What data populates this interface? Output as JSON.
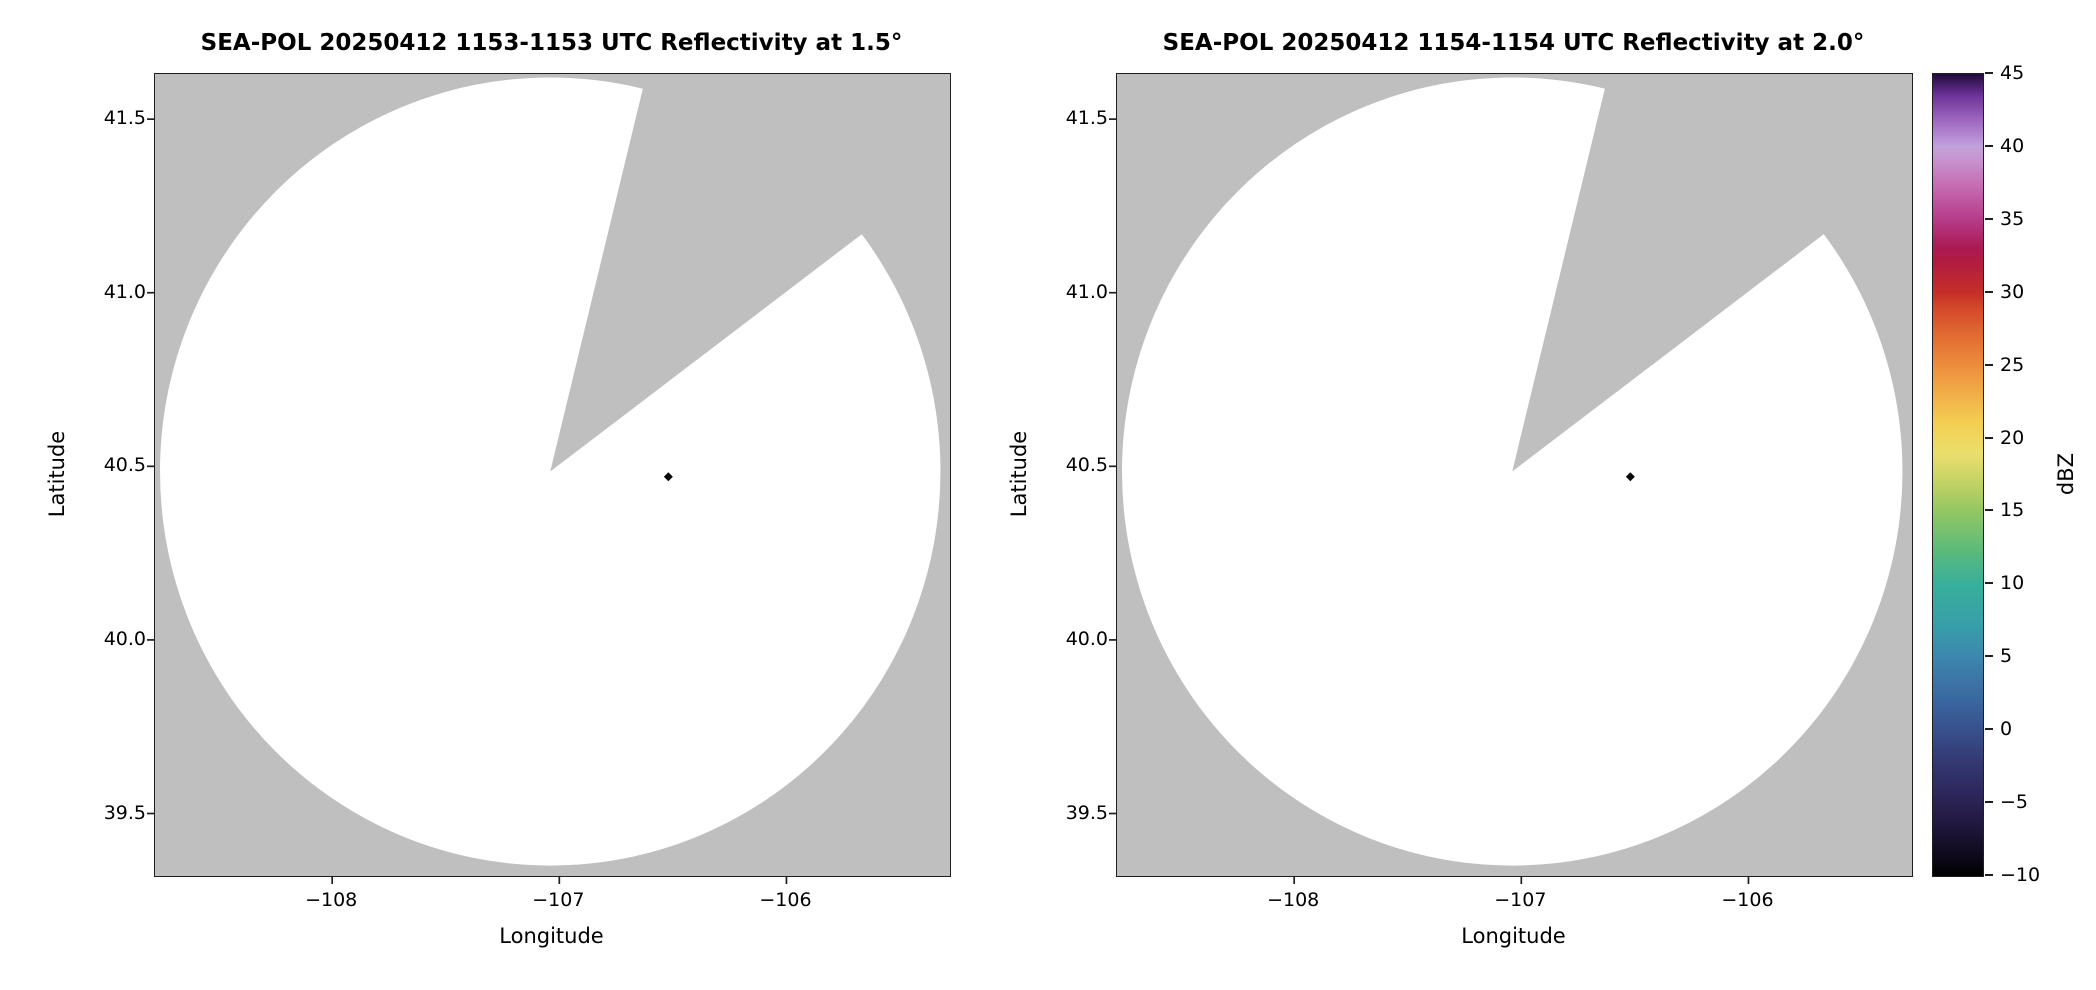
{
  "colors": {
    "figure_background": "#ffffff",
    "no_data_gray": "#bfbfbf",
    "scanned_white": "#ffffff",
    "axis_black": "#1f1f1f"
  },
  "chart_data": [
    {
      "type": "radar_ppi_pcolormesh",
      "title": "SEA-POL 20250412 1153-1153 UTC Reflectivity at 1.5°",
      "xlabel": "Longitude",
      "ylabel": "Latitude",
      "xlim": [
        -108.78,
        -105.28
      ],
      "ylim": [
        39.32,
        41.63
      ],
      "grid": false,
      "xticks": [
        {
          "v": -108,
          "label": "−108"
        },
        {
          "v": -107,
          "label": "−107"
        },
        {
          "v": -106,
          "label": "−106"
        }
      ],
      "yticks": [
        {
          "v": 41.5,
          "label": "41.5"
        },
        {
          "v": 41.0,
          "label": "41.0"
        },
        {
          "v": 40.5,
          "label": "40.5"
        },
        {
          "v": 40.0,
          "label": "40.0"
        },
        {
          "v": 39.5,
          "label": "39.5"
        }
      ],
      "radar": {
        "center_lon": -107.04,
        "center_lat": 40.485,
        "radius_lon_deg": 1.718,
        "radius_lat_deg": 1.135
      },
      "missing_sector": {
        "azimuth_start_deg": 13.6,
        "azimuth_end_deg": 52.7
      },
      "echo": {
        "lon": -106.52,
        "lat": 40.47,
        "color": "#0a0a0a"
      },
      "colors": {
        "scanned": "#ffffff",
        "no_data": "#bfbfbf"
      }
    },
    {
      "type": "radar_ppi_pcolormesh",
      "title": "SEA-POL 20250412 1154-1154 UTC Reflectivity at 2.0°",
      "xlabel": "Longitude",
      "ylabel": "Latitude",
      "xlim": [
        -108.78,
        -105.28
      ],
      "ylim": [
        39.32,
        41.63
      ],
      "grid": false,
      "xticks": [
        {
          "v": -108,
          "label": "−108"
        },
        {
          "v": -107,
          "label": "−107"
        },
        {
          "v": -106,
          "label": "−106"
        }
      ],
      "yticks": [
        {
          "v": 41.5,
          "label": "41.5"
        },
        {
          "v": 41.0,
          "label": "41.0"
        },
        {
          "v": 40.5,
          "label": "40.5"
        },
        {
          "v": 40.0,
          "label": "40.0"
        },
        {
          "v": 39.5,
          "label": "39.5"
        }
      ],
      "radar": {
        "center_lon": -107.04,
        "center_lat": 40.485,
        "radius_lon_deg": 1.718,
        "radius_lat_deg": 1.135
      },
      "missing_sector": {
        "azimuth_start_deg": 13.6,
        "azimuth_end_deg": 52.7
      },
      "echo": {
        "lon": -106.52,
        "lat": 40.47,
        "color": "#0a0a0a"
      },
      "colors": {
        "scanned": "#ffffff",
        "no_data": "#bfbfbf"
      }
    }
  ],
  "colorbar": {
    "label": "dBZ",
    "min": -10,
    "max": 45,
    "ticks": [
      {
        "v": 45,
        "label": "45"
      },
      {
        "v": 40,
        "label": "40"
      },
      {
        "v": 35,
        "label": "35"
      },
      {
        "v": 30,
        "label": "30"
      },
      {
        "v": 25,
        "label": "25"
      },
      {
        "v": 20,
        "label": "20"
      },
      {
        "v": 15,
        "label": "15"
      },
      {
        "v": 10,
        "label": "10"
      },
      {
        "v": 5,
        "label": "5"
      },
      {
        "v": 0,
        "label": "0"
      },
      {
        "v": -5,
        "label": "−5"
      },
      {
        "v": -10,
        "label": "−10"
      }
    ],
    "gradient_stops": [
      {
        "v": -10,
        "c": "#000000"
      },
      {
        "v": -8,
        "c": "#140e25"
      },
      {
        "v": -6,
        "c": "#241b45"
      },
      {
        "v": -4,
        "c": "#2e2a5e"
      },
      {
        "v": -2,
        "c": "#343a74"
      },
      {
        "v": 0,
        "c": "#38508d"
      },
      {
        "v": 2,
        "c": "#3a66a0"
      },
      {
        "v": 5,
        "c": "#3d86ae"
      },
      {
        "v": 7,
        "c": "#389dab"
      },
      {
        "v": 10,
        "c": "#38af9b"
      },
      {
        "v": 12,
        "c": "#55b97e"
      },
      {
        "v": 15,
        "c": "#93c763"
      },
      {
        "v": 17,
        "c": "#c3d365"
      },
      {
        "v": 19,
        "c": "#eadf6e"
      },
      {
        "v": 21,
        "c": "#f3cf53"
      },
      {
        "v": 23,
        "c": "#f1af48"
      },
      {
        "v": 25,
        "c": "#ec8e3d"
      },
      {
        "v": 27,
        "c": "#e26c32"
      },
      {
        "v": 29,
        "c": "#d34729"
      },
      {
        "v": 30,
        "c": "#c52f28"
      },
      {
        "v": 32,
        "c": "#b31c3e"
      },
      {
        "v": 33,
        "c": "#ab1950"
      },
      {
        "v": 35,
        "c": "#b63b88"
      },
      {
        "v": 37,
        "c": "#c565ae"
      },
      {
        "v": 39,
        "c": "#c791cd"
      },
      {
        "v": 40,
        "c": "#c2a2dc"
      },
      {
        "v": 42,
        "c": "#9a63bd"
      },
      {
        "v": 43.5,
        "c": "#6d3399"
      },
      {
        "v": 45,
        "c": "#23093a"
      }
    ]
  }
}
